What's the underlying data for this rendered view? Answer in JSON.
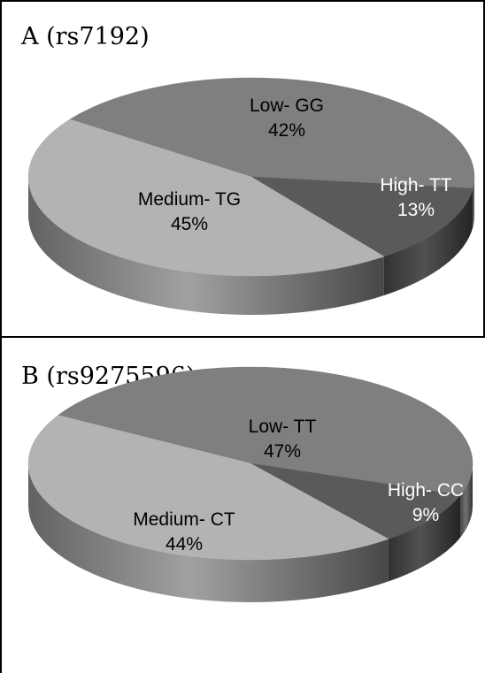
{
  "chart_data": [
    {
      "type": "pie",
      "title": "A (rs7192)",
      "categories": [
        "Low- GG",
        "High- TT",
        "Medium- TG"
      ],
      "values": [
        42,
        13,
        45
      ],
      "labels": [
        "42%",
        "13%",
        "45%"
      ],
      "colors": [
        "#7f7f7f",
        "#5a5a5a",
        "#b3b3b3"
      ],
      "label_colors": [
        "#000000",
        "#ffffff",
        "#000000"
      ],
      "style": "3d"
    },
    {
      "type": "pie",
      "title": "B (rs9275596)",
      "categories": [
        "Low- TT",
        "High- CC",
        "Medium- CT"
      ],
      "values": [
        47,
        9,
        44
      ],
      "labels": [
        "47%",
        "9%",
        "44%"
      ],
      "colors": [
        "#7f7f7f",
        "#5a5a5a",
        "#b3b3b3"
      ],
      "label_colors": [
        "#000000",
        "#ffffff",
        "#000000"
      ],
      "style": "3d"
    }
  ]
}
